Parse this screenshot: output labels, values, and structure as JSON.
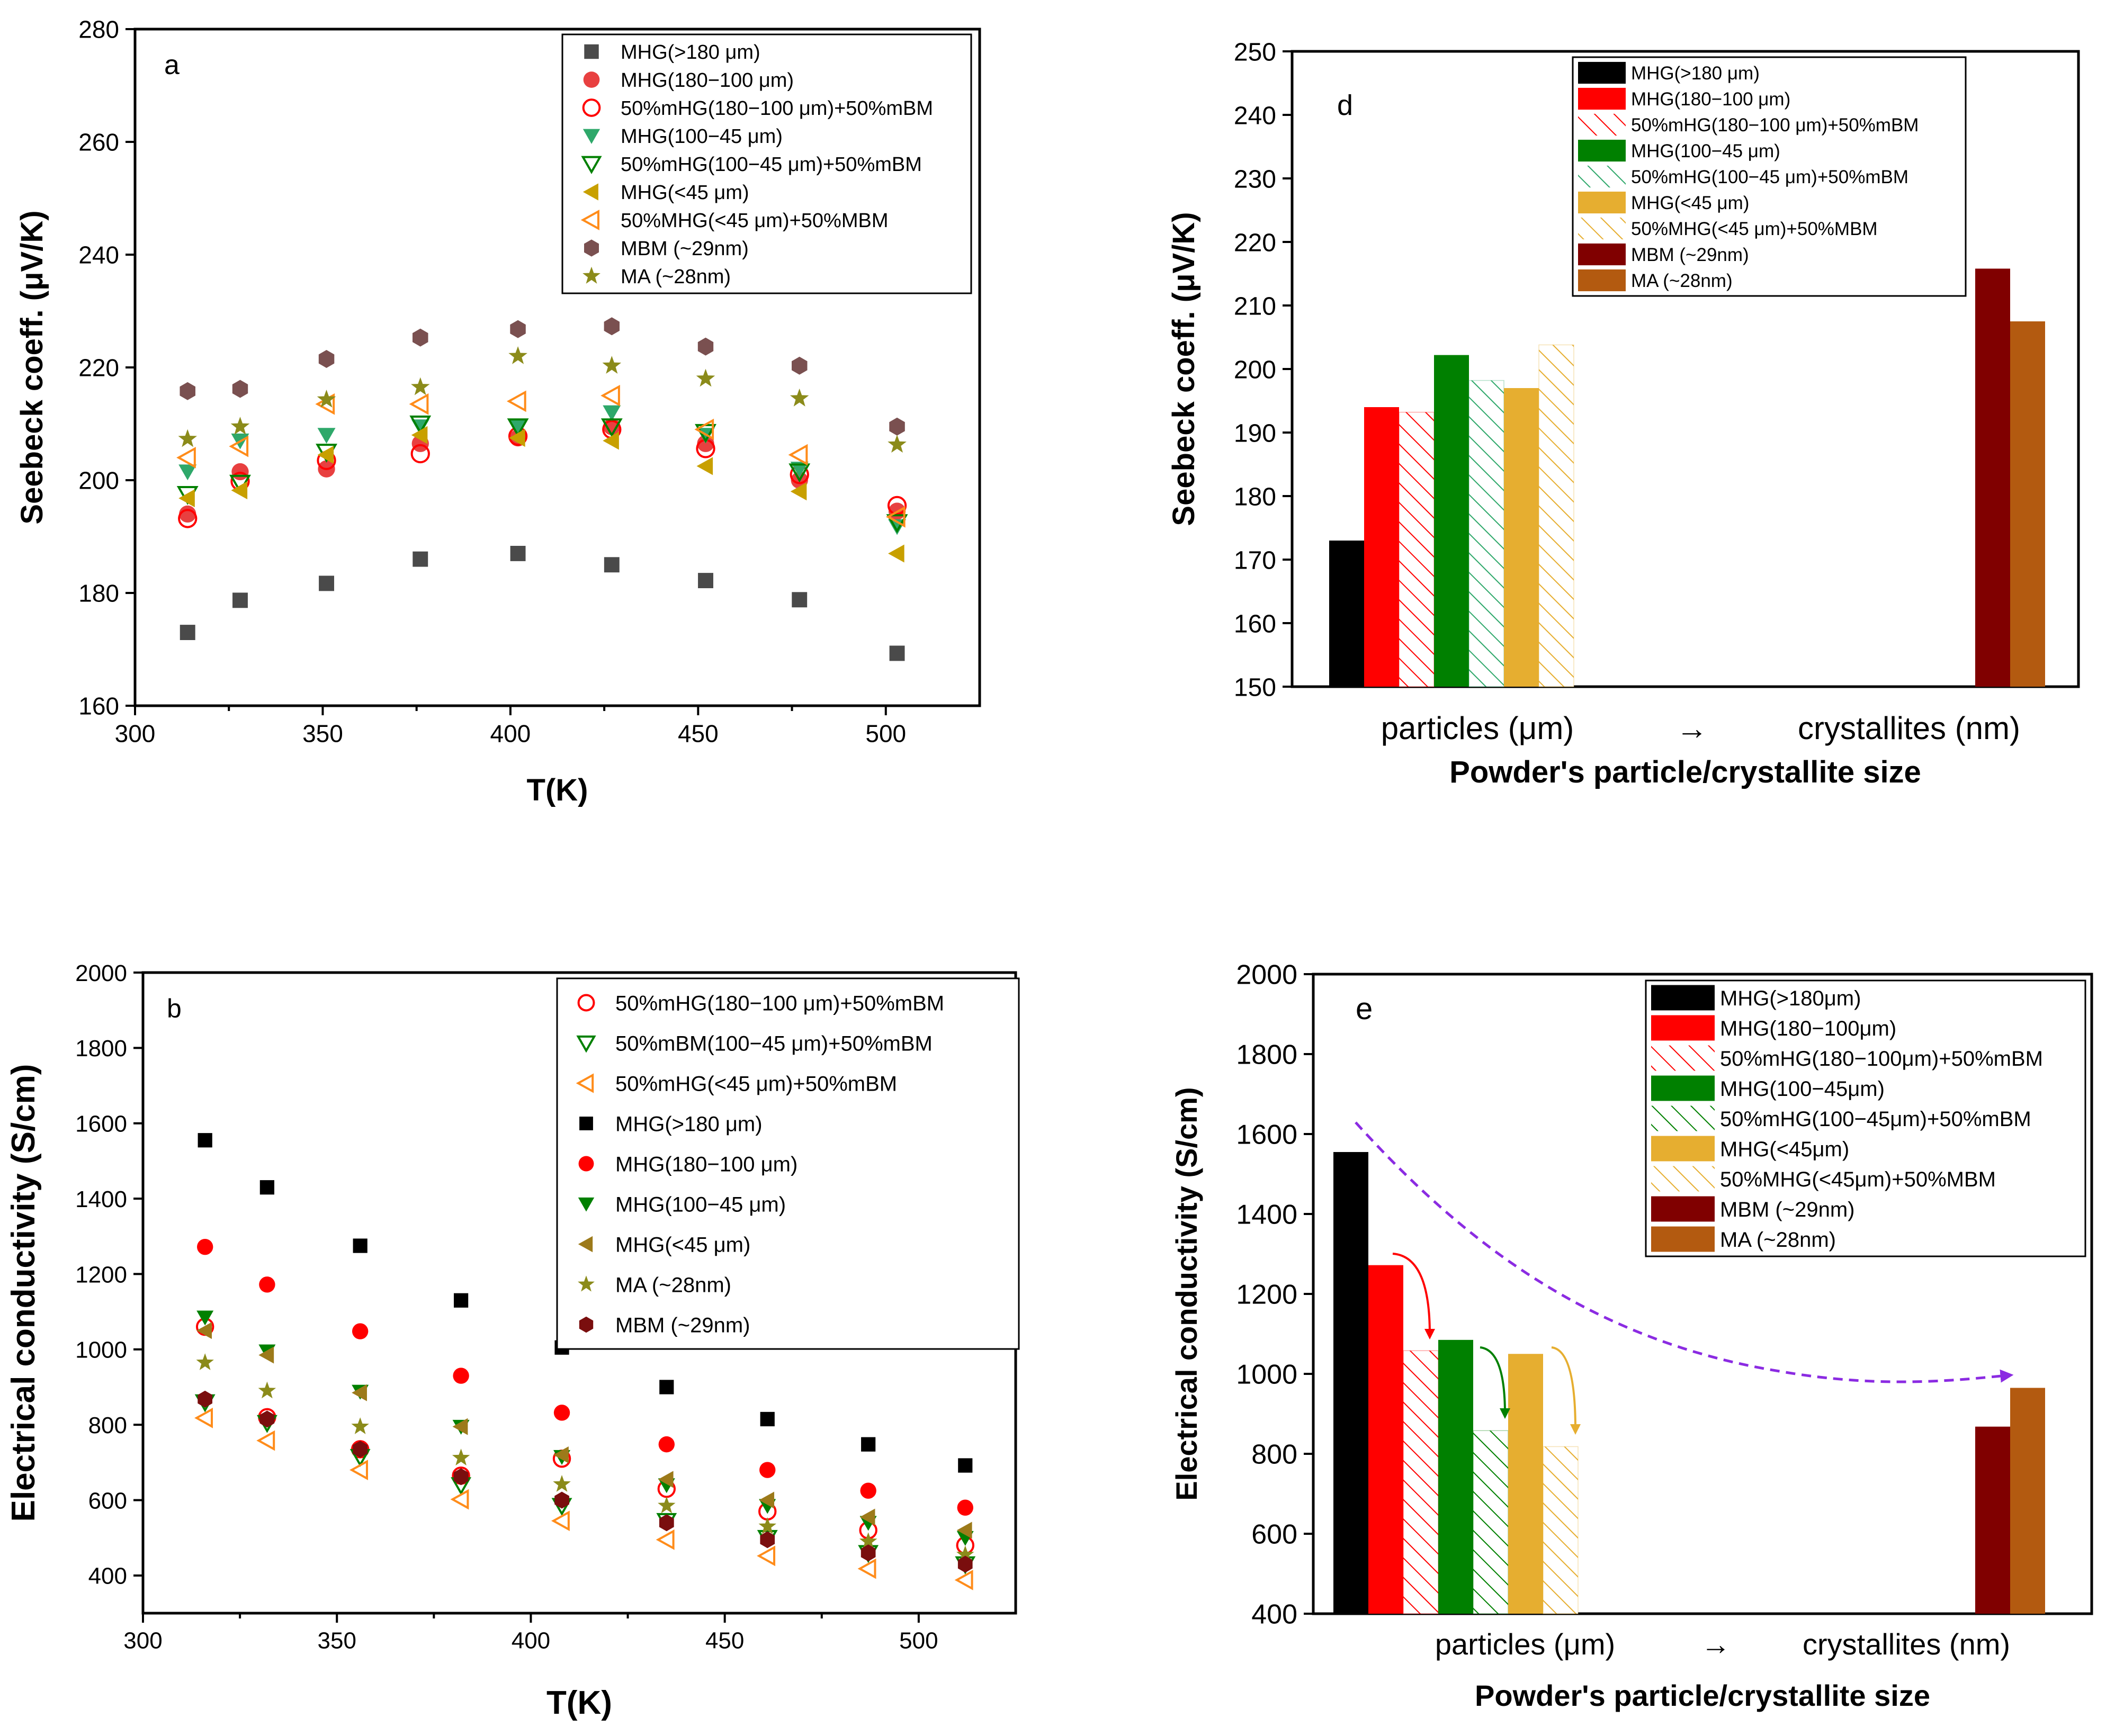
{
  "colors": {
    "black": "#000000",
    "dark_gray": "#4a4a4a",
    "red": "#ff0000",
    "light_red": "#e84040",
    "green": "#008000",
    "teal_green": "#2ea86a",
    "gold": "#e6ae30",
    "olive_gold": "#c8a000",
    "brown_gold": "#9c7a1a",
    "orange": "#ff8c1a",
    "maroon": "#800000",
    "mbm_hex": "#7a5050",
    "olive_star": "#8b8b1a",
    "dark_red": "#7a0e0e",
    "brown": "#b35a10",
    "purple": "#8b2be2"
  },
  "chart_data": [
    {
      "id": "a",
      "type": "scatter",
      "panel_label": "a",
      "xlabel": "T(K)",
      "ylabel": "Seebeck coeff. (μV/K)",
      "xlim": [
        300,
        525
      ],
      "ylim": [
        160,
        280
      ],
      "xticks": [
        300,
        350,
        400,
        450,
        500
      ],
      "yticks": [
        160,
        180,
        200,
        220,
        240,
        260,
        280
      ],
      "legend_position": "top-right",
      "series": [
        {
          "name": "MHG(>180 μm)",
          "marker": "square",
          "filled": true,
          "color": "#4a4a4a",
          "x": [
            314,
            328,
            351,
            376,
            402,
            427,
            452,
            477,
            503
          ],
          "y": [
            173,
            178.7,
            181.7,
            186,
            187,
            185,
            182.2,
            178.8,
            169.3
          ]
        },
        {
          "name": "MHG(180−100 μm)",
          "marker": "circle",
          "filled": true,
          "color": "#e84040",
          "x": [
            314,
            328,
            351,
            376,
            402,
            427,
            452,
            477,
            503
          ],
          "y": [
            194,
            201.5,
            202,
            206.5,
            207.5,
            209.5,
            206.5,
            200,
            194.5
          ]
        },
        {
          "name": "50%mHG(180−100 μm)+50%mBM",
          "marker": "circle",
          "filled": false,
          "color": "#ff0000",
          "x": [
            314,
            328,
            351,
            376,
            402,
            427,
            452,
            477,
            503
          ],
          "y": [
            193.2,
            199.8,
            203.5,
            204.7,
            207.8,
            209,
            205.6,
            201,
            195.5
          ]
        },
        {
          "name": "MHG(100−45 μm)",
          "marker": "triangle-down",
          "filled": true,
          "color": "#2ea86a",
          "x": [
            314,
            328,
            351,
            376,
            402,
            427,
            452,
            477,
            503
          ],
          "y": [
            201.5,
            207,
            208,
            209.5,
            209.5,
            212,
            208,
            202,
            191.8
          ]
        },
        {
          "name": "50%mHG(100−45 μm)+50%mBM",
          "marker": "triangle-down",
          "filled": false,
          "color": "#008000",
          "x": [
            314,
            328,
            351,
            376,
            402,
            427,
            452,
            477,
            503
          ],
          "y": [
            197.5,
            199.5,
            205,
            210,
            209.5,
            209.5,
            208.5,
            201.5,
            192.5
          ]
        },
        {
          "name": "MHG(<45 μm)",
          "marker": "triangle-left",
          "filled": true,
          "color": "#c8a000",
          "x": [
            314,
            328,
            351,
            376,
            402,
            427,
            452,
            477,
            503
          ],
          "y": [
            196.8,
            198.2,
            204.5,
            208,
            207.5,
            207,
            202.5,
            198,
            187
          ]
        },
        {
          "name": "50%MHG(<45 μm)+50%MBM",
          "marker": "triangle-left",
          "filled": false,
          "color": "#ff8c1a",
          "x": [
            314,
            328,
            351,
            376,
            402,
            427,
            452,
            477,
            503
          ],
          "y": [
            204,
            206,
            213.5,
            213.5,
            214,
            215,
            209,
            204.5,
            193.5
          ]
        },
        {
          "name": "MBM (~29nm)",
          "marker": "hexagon",
          "filled": true,
          "color": "#7a5050",
          "x": [
            314,
            328,
            351,
            376,
            402,
            427,
            452,
            477,
            503
          ],
          "y": [
            215.8,
            216.2,
            221.5,
            225.3,
            226.8,
            227.3,
            223.7,
            220.3,
            209.5
          ]
        },
        {
          "name": "MA (~28nm)",
          "marker": "star",
          "filled": true,
          "color": "#8b8b1a",
          "x": [
            314,
            328,
            351,
            376,
            402,
            427,
            452,
            477,
            503
          ],
          "y": [
            207.3,
            209.5,
            214.3,
            216.5,
            222,
            220.3,
            218,
            214.5,
            206.3
          ]
        }
      ]
    },
    {
      "id": "d",
      "type": "bar",
      "panel_label": "d",
      "xlabel": "Powder's particle/crystallite size",
      "ylabel": "Seebeck coeff. (μV/K)",
      "ylim": [
        150,
        250
      ],
      "yticks": [
        150,
        160,
        170,
        180,
        190,
        200,
        210,
        220,
        230,
        240,
        250
      ],
      "category_labels": [
        "particles (μm)",
        "→",
        "crystallites (nm)"
      ],
      "legend_position": "top-center",
      "series": [
        {
          "name": "MHG(>180 μm)",
          "value": 173,
          "color": "#000000",
          "hatched": false
        },
        {
          "name": "MHG(180−100 μm)",
          "value": 194,
          "color": "#ff0000",
          "hatched": false
        },
        {
          "name": "50%mHG(180−100 μm)+50%mBM",
          "value": 193.2,
          "color": "#ff0000",
          "hatched": true
        },
        {
          "name": "MHG(100−45 μm)",
          "value": 202.2,
          "color": "#008000",
          "hatched": false
        },
        {
          "name": "50%mHG(100−45 μm)+50%mBM",
          "value": 198.2,
          "color": "#2ea86a",
          "hatched": true
        },
        {
          "name": "MHG(<45 μm)",
          "value": 197,
          "color": "#e6ae30",
          "hatched": false
        },
        {
          "name": "50%MHG(<45 μm)+50%MBM",
          "value": 203.8,
          "color": "#e6ae30",
          "hatched": true
        },
        {
          "name": "MBM (~29nm)",
          "value": 215.8,
          "color": "#800000",
          "hatched": false
        },
        {
          "name": "MA (~28nm)",
          "value": 207.5,
          "color": "#b35a10",
          "hatched": false
        }
      ]
    },
    {
      "id": "b",
      "type": "scatter",
      "panel_label": "b",
      "xlabel": "T(K)",
      "ylabel": "Electrical conductivity (S/cm)",
      "xlim": [
        300,
        525
      ],
      "ylim": [
        300,
        2000
      ],
      "xticks": [
        300,
        350,
        400,
        450,
        500
      ],
      "yticks": [
        400,
        600,
        800,
        1000,
        1200,
        1400,
        1600,
        1800,
        2000
      ],
      "legend_position": "top-right",
      "series": [
        {
          "name": "50%mHG(180−100 μm)+50%mBM",
          "marker": "circle",
          "filled": false,
          "color": "#ff0000",
          "x": [
            316,
            332,
            356,
            382,
            408,
            435,
            461,
            487,
            512
          ],
          "y": [
            1060,
            820,
            735,
            665,
            710,
            630,
            570,
            520,
            480
          ]
        },
        {
          "name": "50%mBM(100−45 μm)+50%mBM",
          "marker": "triangle-down",
          "filled": false,
          "color": "#008000",
          "x": [
            316,
            332,
            356,
            382,
            408,
            435,
            461,
            487,
            512
          ],
          "y": [
            860,
            805,
            715,
            640,
            585,
            545,
            500,
            460,
            430
          ]
        },
        {
          "name": "50%mHG(<45 μm)+50%mBM",
          "marker": "triangle-left",
          "filled": false,
          "color": "#ff8c1a",
          "x": [
            316,
            332,
            356,
            382,
            408,
            435,
            461,
            487,
            512
          ],
          "y": [
            818,
            758,
            680,
            602,
            545,
            495,
            452,
            418,
            388
          ]
        },
        {
          "name": "MHG(>180 μm)",
          "marker": "square",
          "filled": true,
          "color": "#000000",
          "x": [
            316,
            332,
            356,
            382,
            408,
            435,
            461,
            487,
            512
          ],
          "y": [
            1555,
            1430,
            1275,
            1130,
            1005,
            900,
            815,
            748,
            692
          ]
        },
        {
          "name": "MHG(180−100 μm)",
          "marker": "circle",
          "filled": true,
          "color": "#ff0000",
          "x": [
            316,
            332,
            356,
            382,
            408,
            435,
            461,
            487,
            512
          ],
          "y": [
            1272,
            1172,
            1048,
            930,
            832,
            748,
            680,
            625,
            580
          ]
        },
        {
          "name": "MHG(100−45 μm)",
          "marker": "triangle-down",
          "filled": true,
          "color": "#008000",
          "x": [
            316,
            332,
            356,
            382,
            408,
            435,
            461,
            487,
            512
          ],
          "y": [
            1085,
            995,
            888,
            795,
            715,
            640,
            585,
            540,
            500
          ]
        },
        {
          "name": "MHG(<45 μm)",
          "marker": "triangle-left",
          "filled": true,
          "color": "#9c7a1a",
          "x": [
            316,
            332,
            356,
            382,
            408,
            435,
            461,
            487,
            512
          ],
          "y": [
            1050,
            985,
            885,
            795,
            720,
            655,
            600,
            555,
            520
          ]
        },
        {
          "name": "MA (~28nm)",
          "marker": "star",
          "filled": true,
          "color": "#8b8b1a",
          "x": [
            316,
            332,
            356,
            382,
            408,
            435,
            461,
            487,
            512
          ],
          "y": [
            965,
            890,
            795,
            712,
            642,
            585,
            530,
            490,
            455
          ]
        },
        {
          "name": "MBM (~29nm)",
          "marker": "hexagon",
          "filled": true,
          "color": "#7a0e0e",
          "x": [
            316,
            332,
            356,
            382,
            408,
            435,
            461,
            487,
            512
          ],
          "y": [
            868,
            815,
            735,
            662,
            600,
            540,
            495,
            460,
            430
          ]
        }
      ]
    },
    {
      "id": "e",
      "type": "bar",
      "panel_label": "e",
      "xlabel": "Powder's particle/crystallite size",
      "ylabel": "Electrical conductivity (S/cm)",
      "ylim": [
        400,
        2000
      ],
      "yticks": [
        400,
        600,
        800,
        1000,
        1200,
        1400,
        1600,
        1800,
        2000
      ],
      "category_labels": [
        "particles (μm)",
        "→",
        "crystallites (nm)"
      ],
      "legend_position": "top-right",
      "series": [
        {
          "name": "MHG(>180μm)",
          "value": 1555,
          "color": "#000000",
          "hatched": false
        },
        {
          "name": "MHG(180−100μm)",
          "value": 1272,
          "color": "#ff0000",
          "hatched": false
        },
        {
          "name": "50%mHG(180−100μm)+50%mBM",
          "value": 1058,
          "color": "#ff0000",
          "hatched": true
        },
        {
          "name": "MHG(100−45μm)",
          "value": 1085,
          "color": "#008000",
          "hatched": false
        },
        {
          "name": "50%mHG(100−45μm)+50%mBM",
          "value": 858,
          "color": "#008000",
          "hatched": true
        },
        {
          "name": "MHG(<45μm)",
          "value": 1050,
          "color": "#e6ae30",
          "hatched": false
        },
        {
          "name": "50%MHG(<45μm)+50%MBM",
          "value": 818,
          "color": "#e6ae30",
          "hatched": true
        },
        {
          "name": "MBM (~29nm)",
          "value": 868,
          "color": "#800000",
          "hatched": false
        },
        {
          "name": "MA (~28nm)",
          "value": 965,
          "color": "#b35a10",
          "hatched": false
        }
      ]
    }
  ]
}
